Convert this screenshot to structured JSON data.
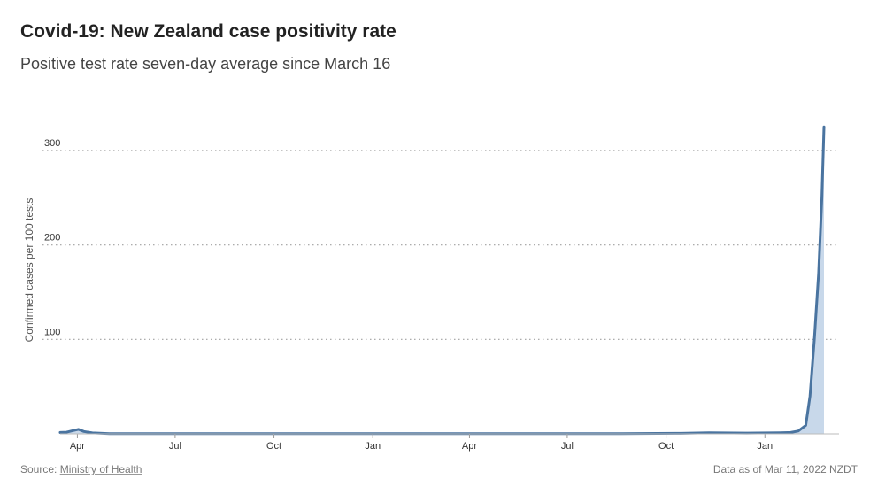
{
  "header": {
    "title": "Covid-19: New Zealand case positivity rate",
    "subtitle": "Positive test rate seven-day average since March 16"
  },
  "footer": {
    "source_label": "Source:",
    "source_name": "Ministry of Health",
    "data_as_of": "Data as of Mar 11, 2022 NZDT"
  },
  "colors": {
    "line": "#4a74a0",
    "area": "#c8d8ea",
    "grid": "#a0a0a0"
  },
  "chart_data": {
    "type": "area",
    "title": "Covid-19: New Zealand case positivity rate",
    "subtitle": "Positive test rate seven-day average since March 16",
    "ylabel": "Confirmed cases per 100 tests",
    "xlabel": "",
    "ylim": [
      0,
      300
    ],
    "yticks": [
      100,
      200,
      300
    ],
    "xlim": [
      "2020-03-16",
      "2022-03-11"
    ],
    "xticks": [
      {
        "date": "2020-04-01",
        "label": "Apr"
      },
      {
        "date": "2020-07-01",
        "label": "Jul"
      },
      {
        "date": "2020-10-01",
        "label": "Oct"
      },
      {
        "date": "2021-01-01",
        "label": "Jan"
      },
      {
        "date": "2021-04-01",
        "label": "Apr"
      },
      {
        "date": "2021-07-01",
        "label": "Jul"
      },
      {
        "date": "2021-10-01",
        "label": "Oct"
      },
      {
        "date": "2022-01-01",
        "label": "Jan"
      }
    ],
    "grid": true,
    "series": [
      {
        "points": [
          {
            "date": "2020-03-16",
            "value": 1.5
          },
          {
            "date": "2020-03-22",
            "value": 1.8
          },
          {
            "date": "2020-03-28",
            "value": 3.5
          },
          {
            "date": "2020-04-02",
            "value": 4.8
          },
          {
            "date": "2020-04-07",
            "value": 2.5
          },
          {
            "date": "2020-04-15",
            "value": 1.0
          },
          {
            "date": "2020-05-01",
            "value": 0.3
          },
          {
            "date": "2020-08-15",
            "value": 0.2
          },
          {
            "date": "2021-02-15",
            "value": 0.2
          },
          {
            "date": "2021-08-20",
            "value": 0.3
          },
          {
            "date": "2021-10-15",
            "value": 0.6
          },
          {
            "date": "2021-11-10",
            "value": 1.2
          },
          {
            "date": "2021-12-15",
            "value": 0.8
          },
          {
            "date": "2022-01-15",
            "value": 1.2
          },
          {
            "date": "2022-01-25",
            "value": 1.5
          },
          {
            "date": "2022-02-01",
            "value": 3.0
          },
          {
            "date": "2022-02-08",
            "value": 9.0
          },
          {
            "date": "2022-02-12",
            "value": 40
          },
          {
            "date": "2022-02-16",
            "value": 100
          },
          {
            "date": "2022-02-20",
            "value": 170
          },
          {
            "date": "2022-02-23",
            "value": 250
          },
          {
            "date": "2022-02-25",
            "value": 325
          }
        ]
      }
    ]
  }
}
